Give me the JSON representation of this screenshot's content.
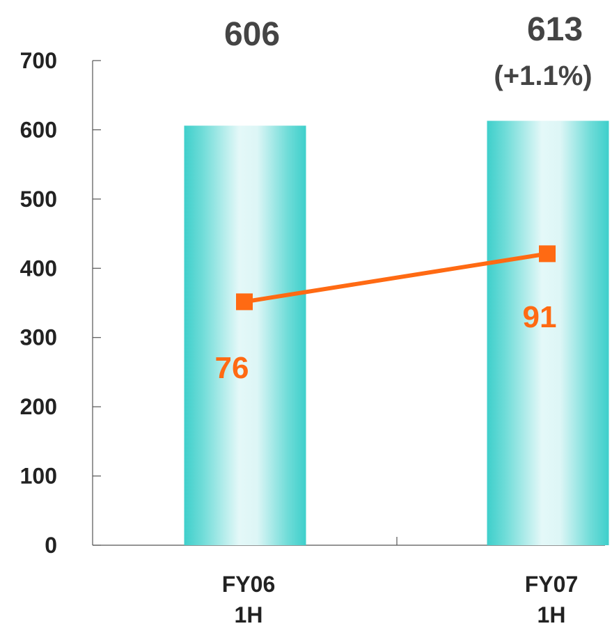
{
  "chart_data": {
    "type": "bar",
    "categories": [
      [
        "FY06",
        "1H"
      ],
      [
        "FY07",
        "1H"
      ]
    ],
    "ylim": [
      0,
      700
    ],
    "yticks": [
      0,
      100,
      200,
      300,
      400,
      500,
      600,
      700
    ],
    "series": [
      {
        "type": "bar",
        "values": [
          606,
          613
        ],
        "value_labels": [
          "606",
          "613"
        ],
        "change_labels": [
          "",
          "(+1.1%)"
        ],
        "color": "#3ECFCB"
      },
      {
        "type": "line",
        "values": [
          76,
          91
        ],
        "value_labels": [
          "76",
          "91"
        ],
        "color": "#FF6A13"
      }
    ],
    "grid": false,
    "legend": "none"
  }
}
